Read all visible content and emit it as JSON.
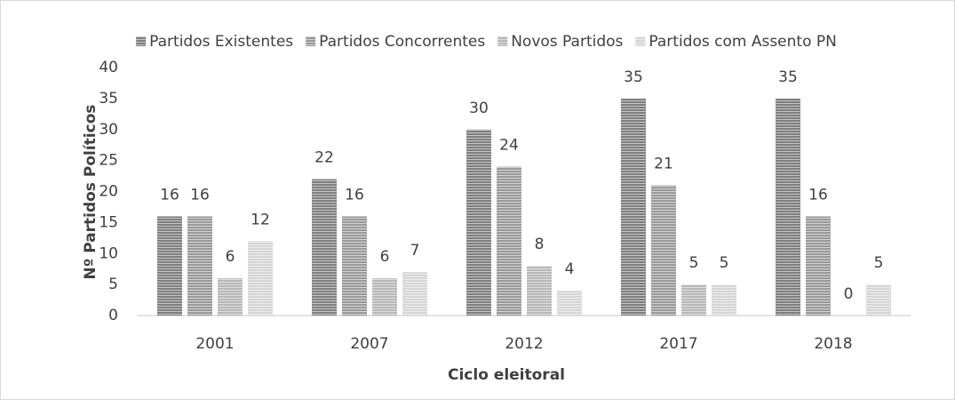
{
  "chart_data": {
    "type": "bar",
    "xlabel": "Ciclo eleitoral",
    "ylabel": "Nº Partidos Políticos",
    "categories": [
      "2001",
      "2007",
      "2012",
      "2017",
      "2018"
    ],
    "series": [
      {
        "name": "Partidos Existentes",
        "color": "#7f7f7f",
        "values": [
          16,
          22,
          30,
          35,
          35
        ]
      },
      {
        "name": "Partidos Concorrentes",
        "color": "#9a9a9a",
        "values": [
          16,
          16,
          24,
          21,
          16
        ]
      },
      {
        "name": "Novos Partidos",
        "color": "#b8b8b8",
        "values": [
          6,
          6,
          8,
          5,
          0
        ]
      },
      {
        "name": "Partidos com Assento PN",
        "color": "#d6d6d6",
        "values": [
          12,
          7,
          4,
          5,
          5
        ]
      }
    ],
    "ylim": [
      0,
      40
    ],
    "yticks": [
      0,
      5,
      10,
      15,
      20,
      25,
      30,
      35,
      40
    ],
    "grid": false,
    "legend": "top",
    "data_labels": true
  }
}
